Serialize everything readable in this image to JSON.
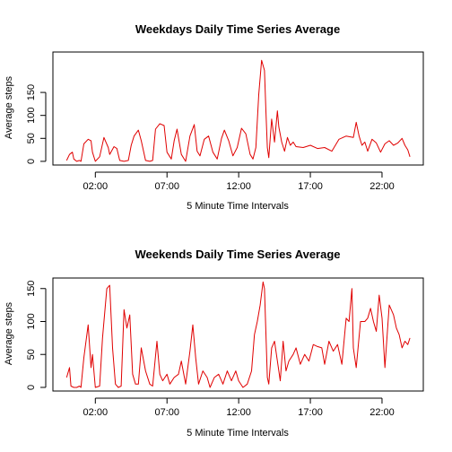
{
  "chart_data": [
    {
      "type": "line",
      "title": "Weekdays Daily Time Series Average",
      "xlabel": "5 Minute Time Intervals",
      "ylabel": "Average steps",
      "color": "#e00000",
      "x_ticks": [
        "02:00",
        "07:00",
        "12:00",
        "17:00",
        "22:00"
      ],
      "x_tick_values": [
        2,
        7,
        12,
        17,
        22
      ],
      "y_ticks": [
        0,
        50,
        100,
        150
      ],
      "xlim": [
        -0.96,
        24.88
      ],
      "ylim": [
        -8,
        238
      ],
      "series": [
        {
          "x": [
            0.0,
            0.2,
            0.4,
            0.5,
            0.7,
            0.9,
            1.0,
            1.2,
            1.5,
            1.7,
            1.8,
            2.0,
            2.3,
            2.6,
            2.9,
            3.0,
            3.3,
            3.5,
            3.7,
            4.0,
            4.3,
            4.5,
            4.7,
            5.0,
            5.2,
            5.5,
            5.8,
            6.0,
            6.2,
            6.5,
            6.8,
            7.0,
            7.3,
            7.5,
            7.7,
            8.0,
            8.3,
            8.6,
            8.9,
            9.1,
            9.3,
            9.6,
            9.9,
            10.2,
            10.5,
            10.8,
            11.0,
            11.3,
            11.6,
            11.9,
            12.2,
            12.5,
            12.8,
            13.0,
            13.2,
            13.4,
            13.6,
            13.8,
            13.9,
            14.0,
            14.1,
            14.3,
            14.5,
            14.7,
            14.8,
            15.0,
            15.2,
            15.4,
            15.6,
            15.8,
            16.0,
            16.5,
            17.0,
            17.5,
            18.0,
            18.5,
            19.0,
            19.5,
            20.0,
            20.2,
            20.4,
            20.6,
            20.8,
            21.0,
            21.3,
            21.6,
            21.9,
            22.2,
            22.5,
            22.8,
            23.1,
            23.4,
            23.6,
            23.8,
            23.95
          ],
          "y": [
            2,
            15,
            20,
            5,
            0,
            2,
            0,
            38,
            48,
            45,
            20,
            0,
            10,
            52,
            30,
            15,
            32,
            28,
            2,
            0,
            2,
            35,
            55,
            68,
            45,
            2,
            0,
            2,
            70,
            82,
            78,
            20,
            5,
            45,
            70,
            15,
            0,
            55,
            80,
            22,
            12,
            48,
            55,
            20,
            5,
            50,
            68,
            45,
            12,
            30,
            72,
            60,
            15,
            5,
            30,
            145,
            220,
            198,
            110,
            30,
            8,
            92,
            42,
            110,
            75,
            42,
            22,
            52,
            35,
            42,
            32,
            30,
            35,
            28,
            30,
            22,
            48,
            55,
            52,
            85,
            55,
            35,
            42,
            22,
            48,
            40,
            20,
            38,
            45,
            35,
            40,
            50,
            35,
            25,
            10
          ]
        }
      ]
    },
    {
      "type": "line",
      "title": "Weekends Daily Time Series Average",
      "xlabel": "5 Minute Time Intervals",
      "ylabel": "Average steps",
      "color": "#e00000",
      "x_ticks": [
        "02:00",
        "07:00",
        "12:00",
        "17:00",
        "22:00"
      ],
      "x_tick_values": [
        2,
        7,
        12,
        17,
        22
      ],
      "y_ticks": [
        0,
        50,
        100,
        150
      ],
      "xlim": [
        -0.96,
        24.88
      ],
      "ylim": [
        -5.5,
        166
      ],
      "series": [
        {
          "x": [
            0.0,
            0.2,
            0.3,
            0.5,
            0.7,
            0.9,
            1.0,
            1.2,
            1.5,
            1.7,
            1.8,
            2.0,
            2.3,
            2.5,
            2.8,
            3.0,
            3.2,
            3.4,
            3.6,
            3.8,
            4.0,
            4.2,
            4.4,
            4.6,
            4.8,
            5.0,
            5.2,
            5.5,
            5.8,
            6.0,
            6.3,
            6.5,
            6.7,
            7.0,
            7.2,
            7.5,
            7.8,
            8.0,
            8.3,
            8.6,
            8.8,
            9.0,
            9.2,
            9.5,
            9.8,
            10.0,
            10.3,
            10.6,
            10.9,
            11.2,
            11.5,
            11.8,
            12.0,
            12.3,
            12.6,
            12.9,
            13.1,
            13.3,
            13.5,
            13.7,
            13.8,
            14.0,
            14.1,
            14.3,
            14.5,
            14.7,
            14.9,
            15.1,
            15.3,
            15.5,
            15.8,
            16.0,
            16.3,
            16.6,
            16.9,
            17.2,
            17.5,
            17.8,
            18.0,
            18.3,
            18.6,
            18.9,
            19.2,
            19.5,
            19.7,
            19.9,
            20.0,
            20.2,
            20.5,
            20.8,
            21.0,
            21.2,
            21.4,
            21.6,
            21.8,
            22.0,
            22.2,
            22.5,
            22.8,
            23.0,
            23.2,
            23.4,
            23.6,
            23.8,
            23.95
          ],
          "y": [
            15,
            30,
            2,
            0,
            0,
            2,
            0,
            45,
            95,
            30,
            50,
            0,
            2,
            75,
            150,
            155,
            60,
            5,
            0,
            2,
            118,
            90,
            110,
            20,
            5,
            5,
            60,
            25,
            5,
            2,
            70,
            20,
            10,
            20,
            5,
            15,
            20,
            40,
            5,
            55,
            95,
            45,
            5,
            25,
            15,
            0,
            15,
            20,
            5,
            25,
            10,
            25,
            10,
            0,
            5,
            25,
            80,
            100,
            125,
            160,
            150,
            15,
            5,
            60,
            70,
            40,
            10,
            70,
            25,
            40,
            50,
            60,
            35,
            50,
            40,
            65,
            62,
            60,
            35,
            70,
            55,
            65,
            35,
            105,
            100,
            150,
            60,
            30,
            100,
            100,
            105,
            120,
            100,
            85,
            140,
            105,
            30,
            125,
            110,
            90,
            80,
            60,
            70,
            65,
            75
          ]
        }
      ]
    }
  ]
}
